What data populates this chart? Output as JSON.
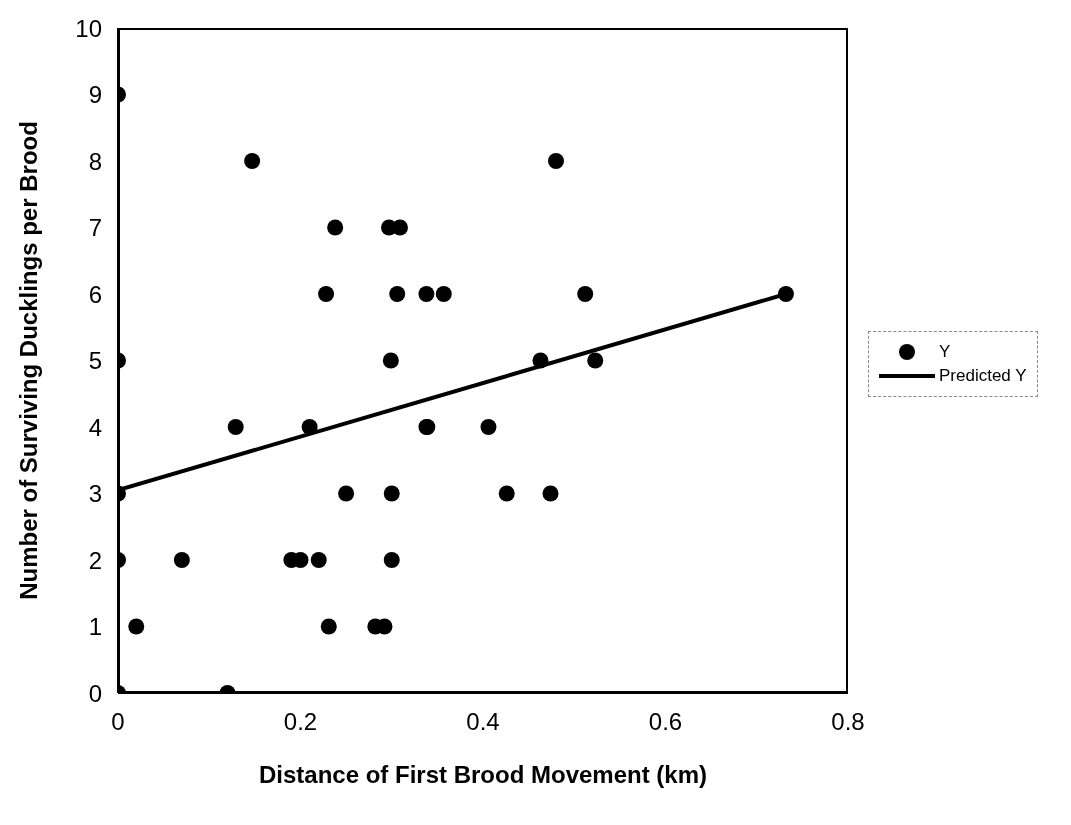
{
  "chart_data": {
    "type": "scatter",
    "xlabel": "Distance of First Brood Movement (km)",
    "ylabel": "Number of Surviving Ducklings per Brood",
    "xlim": [
      0,
      0.8
    ],
    "xticks": [
      0,
      0.2,
      0.4,
      0.6,
      0.8
    ],
    "ylim": [
      0,
      10
    ],
    "yticks": [
      0,
      1,
      2,
      3,
      4,
      5,
      6,
      7,
      8,
      9,
      10
    ],
    "grid": false,
    "legend": "right",
    "series": [
      {
        "name": "Y",
        "marker": "circle",
        "color": "#000000",
        "x": [
          0,
          0,
          0,
          0,
          0,
          0.02,
          0.07,
          0.12,
          0.129,
          0.147,
          0.19,
          0.2,
          0.21,
          0.22,
          0.228,
          0.231,
          0.238,
          0.25,
          0.282,
          0.292,
          0.297,
          0.309,
          0.299,
          0.3,
          0.3,
          0.306,
          0.338,
          0.338,
          0.357,
          0.339,
          0.406,
          0.426,
          0.463,
          0.474,
          0.48,
          0.512,
          0.523,
          0.732
        ],
        "values": [
          9,
          5,
          3,
          2,
          0,
          1,
          2,
          0,
          4,
          8,
          2,
          2,
          4,
          2,
          6,
          1,
          7,
          3,
          1,
          1,
          7,
          7,
          5,
          3,
          2,
          6,
          6,
          4,
          6,
          4,
          4,
          3,
          5,
          3,
          8,
          6,
          5,
          6
        ]
      },
      {
        "name": "Predicted Y",
        "type": "line",
        "marker": "none",
        "color": "#000000",
        "x": [
          0,
          0.732
        ],
        "values": [
          3.05,
          6.0
        ]
      }
    ]
  }
}
